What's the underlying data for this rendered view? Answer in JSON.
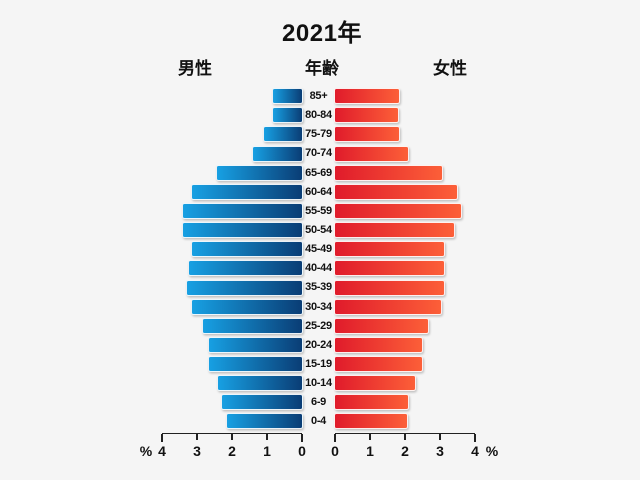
{
  "header": {
    "title": "2021年",
    "left_group": "男性",
    "center_group": "年齢",
    "right_group": "女性"
  },
  "axis": {
    "unit": "%",
    "left_tick_order": [
      "4",
      "3",
      "2",
      "1",
      "0"
    ],
    "right_tick_order": [
      "0",
      "1",
      "2",
      "3",
      "4"
    ]
  },
  "colors": {
    "background": "#f5f5f5",
    "text": "#111111",
    "axis": "#222222",
    "male_gradient_light": "#17a0e3",
    "male_gradient_dark": "#0a3d75",
    "female_gradient_dark": "#e01b2b",
    "female_gradient_light": "#fc5f38"
  },
  "chart_data": {
    "type": "bar",
    "subtype": "population_pyramid",
    "orientation": "horizontal",
    "title": "2021年",
    "ylabel": "年齢",
    "x_unit": "%",
    "xlim": [
      0,
      4
    ],
    "x_ticks": [
      0,
      1,
      2,
      3,
      4
    ],
    "grid": false,
    "categories": [
      "85+",
      "80-84",
      "75-79",
      "70-74",
      "65-69",
      "60-64",
      "55-59",
      "50-54",
      "45-49",
      "40-44",
      "35-39",
      "30-34",
      "25-29",
      "20-24",
      "15-19",
      "10-14",
      "6-9",
      "0-4"
    ],
    "series": [
      {
        "name": "男性",
        "side": "left",
        "values": [
          0.9,
          0.88,
          1.15,
          1.47,
          2.5,
          3.2,
          3.47,
          3.47,
          3.2,
          3.3,
          3.35,
          3.2,
          2.9,
          2.72,
          2.72,
          2.45,
          2.33,
          2.2
        ]
      },
      {
        "name": "女性",
        "side": "right",
        "values": [
          1.88,
          1.86,
          1.88,
          2.15,
          3.1,
          3.55,
          3.65,
          3.45,
          3.18,
          3.18,
          3.18,
          3.08,
          2.7,
          2.55,
          2.55,
          2.35,
          2.15,
          2.1
        ]
      }
    ]
  }
}
